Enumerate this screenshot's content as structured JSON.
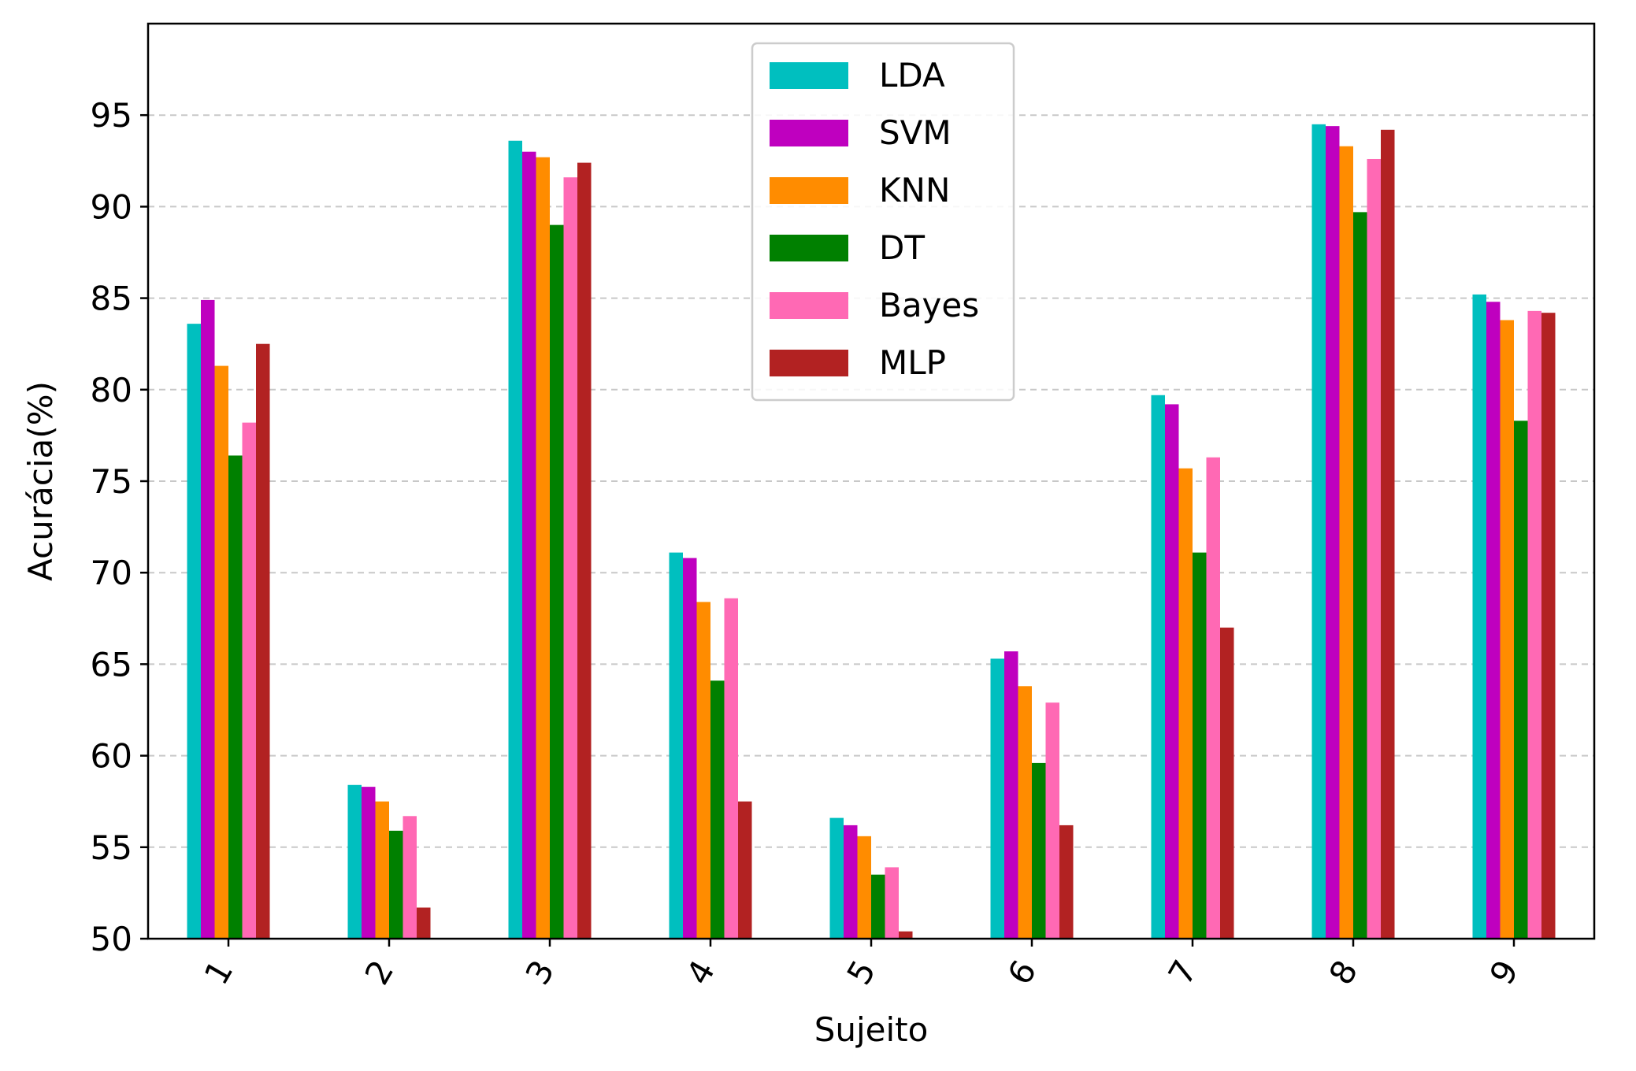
{
  "chart_data": {
    "type": "bar",
    "title": "",
    "xlabel": "Sujeito",
    "ylabel": "Acurácia(%)",
    "ylim": [
      50,
      100
    ],
    "yticks": [
      50,
      55,
      60,
      65,
      70,
      75,
      80,
      85,
      90,
      95
    ],
    "grid": "horizontal dashed",
    "legend_position": "top-center",
    "categories": [
      "1",
      "2",
      "3",
      "4",
      "5",
      "6",
      "7",
      "8",
      "9"
    ],
    "series": [
      {
        "name": "LDA",
        "color": "#00bfbf",
        "values": [
          83.6,
          58.4,
          93.6,
          71.1,
          56.6,
          65.3,
          79.7,
          94.5,
          85.2
        ]
      },
      {
        "name": "SVM",
        "color": "#bf00bf",
        "values": [
          84.9,
          58.3,
          93.0,
          70.8,
          56.2,
          65.7,
          79.2,
          94.4,
          84.8
        ]
      },
      {
        "name": "KNN",
        "color": "#ff8c00",
        "values": [
          81.3,
          57.5,
          92.7,
          68.4,
          55.6,
          63.8,
          75.7,
          93.3,
          83.8
        ]
      },
      {
        "name": "DT",
        "color": "#008000",
        "values": [
          76.4,
          55.9,
          89.0,
          64.1,
          53.5,
          59.6,
          71.1,
          89.7,
          78.3
        ]
      },
      {
        "name": "Bayes",
        "color": "#ff69b4",
        "values": [
          78.2,
          56.7,
          91.6,
          68.6,
          53.9,
          62.9,
          76.3,
          92.6,
          84.3
        ]
      },
      {
        "name": "MLP",
        "color": "#b22222",
        "values": [
          82.5,
          51.7,
          92.4,
          57.5,
          50.4,
          56.2,
          67.0,
          94.2,
          84.2
        ]
      }
    ]
  }
}
